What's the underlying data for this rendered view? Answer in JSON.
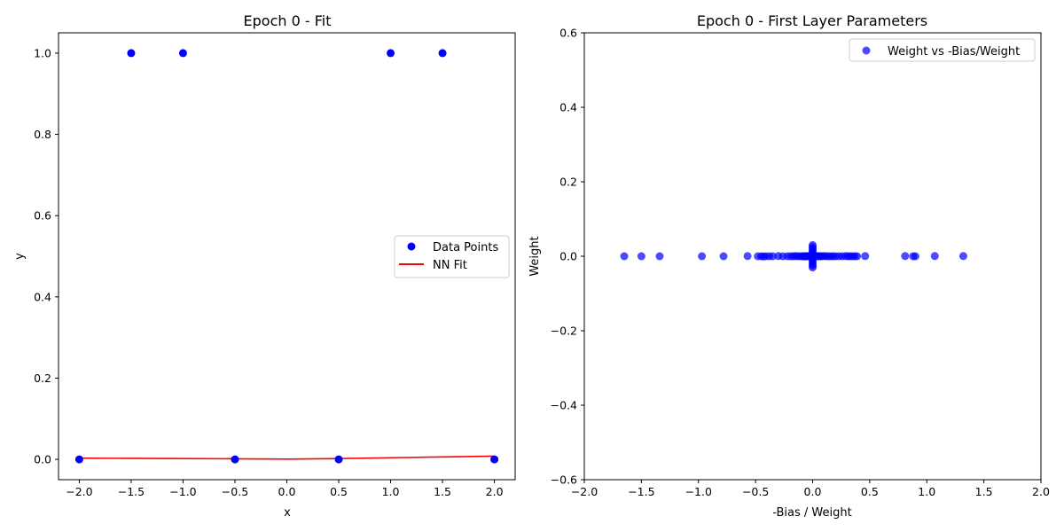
{
  "chart_data": [
    {
      "type": "scatter",
      "title": "Epoch 0 - Fit",
      "xlabel": "x",
      "ylabel": "y",
      "xlim": [
        -2.2,
        2.2
      ],
      "ylim": [
        -0.05,
        1.05
      ],
      "xticks": [
        -2.0,
        -1.5,
        -1.0,
        -0.5,
        0.0,
        0.5,
        1.0,
        1.5,
        2.0
      ],
      "yticks": [
        0.0,
        0.2,
        0.4,
        0.6,
        0.8,
        1.0
      ],
      "xtick_labels": [
        "−2.0",
        "−1.5",
        "−1.0",
        "−0.5",
        "0.0",
        "0.5",
        "1.0",
        "1.5",
        "2.0"
      ],
      "ytick_labels": [
        "0.0",
        "0.2",
        "0.4",
        "0.6",
        "0.8",
        "1.0"
      ],
      "grid": false,
      "legend_position": "center-right",
      "series": [
        {
          "name": "Data Points",
          "kind": "scatter",
          "color": "#0000ff",
          "x": [
            -2.0,
            -1.5,
            -1.0,
            -0.5,
            0.5,
            1.0,
            1.5,
            2.0
          ],
          "y": [
            0,
            1,
            1,
            0,
            0,
            1,
            1,
            0
          ]
        },
        {
          "name": "NN Fit",
          "kind": "line",
          "color": "#ff0000",
          "x": [
            -2.0,
            -1.5,
            -1.0,
            -0.5,
            0.0,
            0.5,
            1.0,
            1.5,
            2.0
          ],
          "y": [
            0.003,
            0.0025,
            0.002,
            0.0015,
            0.0005,
            0.002,
            0.004,
            0.006,
            0.008
          ]
        }
      ]
    },
    {
      "type": "scatter",
      "title": "Epoch 0 - First Layer Parameters",
      "xlabel": "-Bias / Weight",
      "ylabel": "Weight",
      "xlim": [
        -2.0,
        2.0
      ],
      "ylim": [
        -0.6,
        0.6
      ],
      "xticks": [
        -2.0,
        -1.5,
        -1.0,
        -0.5,
        0.0,
        0.5,
        1.0,
        1.5,
        2.0
      ],
      "yticks": [
        -0.6,
        -0.4,
        -0.2,
        0.0,
        0.2,
        0.4,
        0.6
      ],
      "xtick_labels": [
        "−2.0",
        "−1.5",
        "−1.0",
        "−0.5",
        "0.0",
        "0.5",
        "1.0",
        "1.5",
        "2.0"
      ],
      "ytick_labels": [
        "−0.6",
        "−0.4",
        "−0.2",
        "0.0",
        "0.2",
        "0.4",
        "0.6"
      ],
      "grid": false,
      "legend_position": "top-right",
      "series": [
        {
          "name": "Weight vs -Bias/Weight",
          "kind": "scatter",
          "color": "#0000ff",
          "opacity": 0.7,
          "x": [
            -1.65,
            -1.5,
            -1.34,
            -0.97,
            -0.78,
            -0.57,
            -0.48,
            -0.45,
            -0.43,
            -0.41,
            -0.38,
            -0.35,
            -0.3,
            -0.26,
            -0.22,
            -0.19,
            -0.17,
            -0.15,
            -0.13,
            -0.11,
            -0.09,
            -0.08,
            -0.07,
            -0.06,
            -0.05,
            -0.04,
            -0.03,
            -0.02,
            -0.01,
            0.0,
            0.0,
            0.0,
            0.0,
            0.0,
            0.0,
            0.0,
            0.0,
            0.0,
            0.0,
            0.0,
            0.0,
            0.0,
            0.0,
            0.0,
            0.01,
            0.02,
            0.03,
            0.04,
            0.05,
            0.06,
            0.07,
            0.08,
            0.1,
            0.12,
            0.14,
            0.16,
            0.18,
            0.2,
            0.23,
            0.26,
            0.29,
            0.31,
            0.33,
            0.35,
            0.37,
            0.39,
            0.46,
            0.81,
            0.88,
            0.9,
            1.07,
            1.32
          ],
          "y": [
            0.0,
            0.0,
            0.0,
            0.0,
            0.0,
            0.0005,
            0.0,
            0.0,
            -0.0005,
            0.0,
            0.0,
            0.0,
            0.0005,
            0.0,
            0.0,
            0.0,
            0.0,
            0.0005,
            0.0,
            0.0,
            0.0,
            0.0,
            0.0,
            -0.0005,
            0.0005,
            0.0,
            0.0,
            0.0,
            0.0,
            0.03,
            0.025,
            0.02,
            0.015,
            0.01,
            0.006,
            0.003,
            -0.003,
            -0.006,
            -0.01,
            -0.015,
            -0.02,
            -0.025,
            -0.03,
            0.0,
            0.0,
            0.0,
            0.0005,
            0.0,
            0.0,
            0.0,
            0.0,
            0.0,
            0.0005,
            0.0,
            0.0,
            0.0,
            0.0,
            0.0,
            0.0,
            0.0,
            0.0005,
            0.0,
            0.0,
            0.0,
            0.0,
            0.0,
            0.0005,
            0.0005,
            0.0,
            0.0,
            0.0005,
            0.0005
          ]
        }
      ]
    }
  ]
}
